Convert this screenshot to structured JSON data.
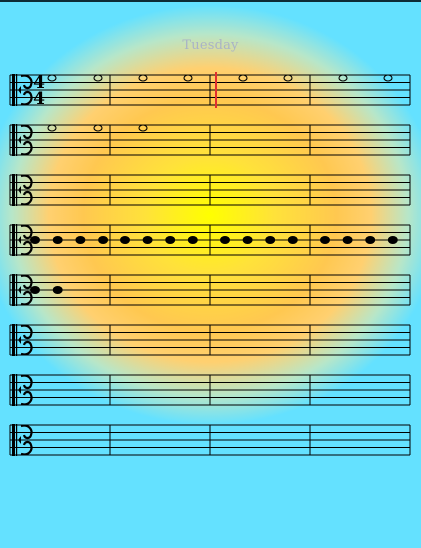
{
  "document": {
    "title": "Tuesday"
  },
  "score": {
    "clef": "alto",
    "time_signature": {
      "numerator": "4",
      "denominator": "4"
    },
    "measures_per_system": 4,
    "cursor": {
      "system": 1,
      "measure": 3
    },
    "colors": {
      "staff": "#000000",
      "cursor": "#e23030",
      "title": "#a9b3c6"
    },
    "systems": [
      {
        "notes": [
          {
            "measure": 1,
            "beat": 1,
            "type": "whole"
          },
          {
            "measure": 1,
            "beat": 3,
            "type": "whole"
          },
          {
            "measure": 2,
            "beat": 1,
            "type": "whole"
          },
          {
            "measure": 2,
            "beat": 3,
            "type": "whole"
          },
          {
            "measure": 3,
            "beat": 1,
            "type": "whole"
          },
          {
            "measure": 3,
            "beat": 3,
            "type": "whole"
          },
          {
            "measure": 4,
            "beat": 1,
            "type": "whole"
          },
          {
            "measure": 4,
            "beat": 3,
            "type": "whole"
          }
        ]
      },
      {
        "notes": [
          {
            "measure": 1,
            "beat": 1,
            "type": "whole"
          },
          {
            "measure": 1,
            "beat": 3,
            "type": "whole"
          },
          {
            "measure": 2,
            "beat": 1,
            "type": "whole"
          }
        ]
      },
      {
        "notes": []
      },
      {
        "notes": [
          {
            "measure": 1,
            "beat": 1,
            "type": "quarter"
          },
          {
            "measure": 1,
            "beat": 2,
            "type": "quarter"
          },
          {
            "measure": 1,
            "beat": 3,
            "type": "quarter"
          },
          {
            "measure": 1,
            "beat": 4,
            "type": "quarter"
          },
          {
            "measure": 2,
            "beat": 1,
            "type": "quarter"
          },
          {
            "measure": 2,
            "beat": 2,
            "type": "quarter"
          },
          {
            "measure": 2,
            "beat": 3,
            "type": "quarter"
          },
          {
            "measure": 2,
            "beat": 4,
            "type": "quarter"
          },
          {
            "measure": 3,
            "beat": 1,
            "type": "quarter"
          },
          {
            "measure": 3,
            "beat": 2,
            "type": "quarter"
          },
          {
            "measure": 3,
            "beat": 3,
            "type": "quarter"
          },
          {
            "measure": 3,
            "beat": 4,
            "type": "quarter"
          },
          {
            "measure": 4,
            "beat": 1,
            "type": "quarter"
          },
          {
            "measure": 4,
            "beat": 2,
            "type": "quarter"
          },
          {
            "measure": 4,
            "beat": 3,
            "type": "quarter"
          },
          {
            "measure": 4,
            "beat": 4,
            "type": "quarter"
          }
        ]
      },
      {
        "notes": [
          {
            "measure": 1,
            "beat": 1,
            "type": "quarter"
          },
          {
            "measure": 1,
            "beat": 2,
            "type": "quarter"
          }
        ]
      },
      {
        "notes": []
      },
      {
        "notes": []
      },
      {
        "notes": []
      }
    ]
  }
}
